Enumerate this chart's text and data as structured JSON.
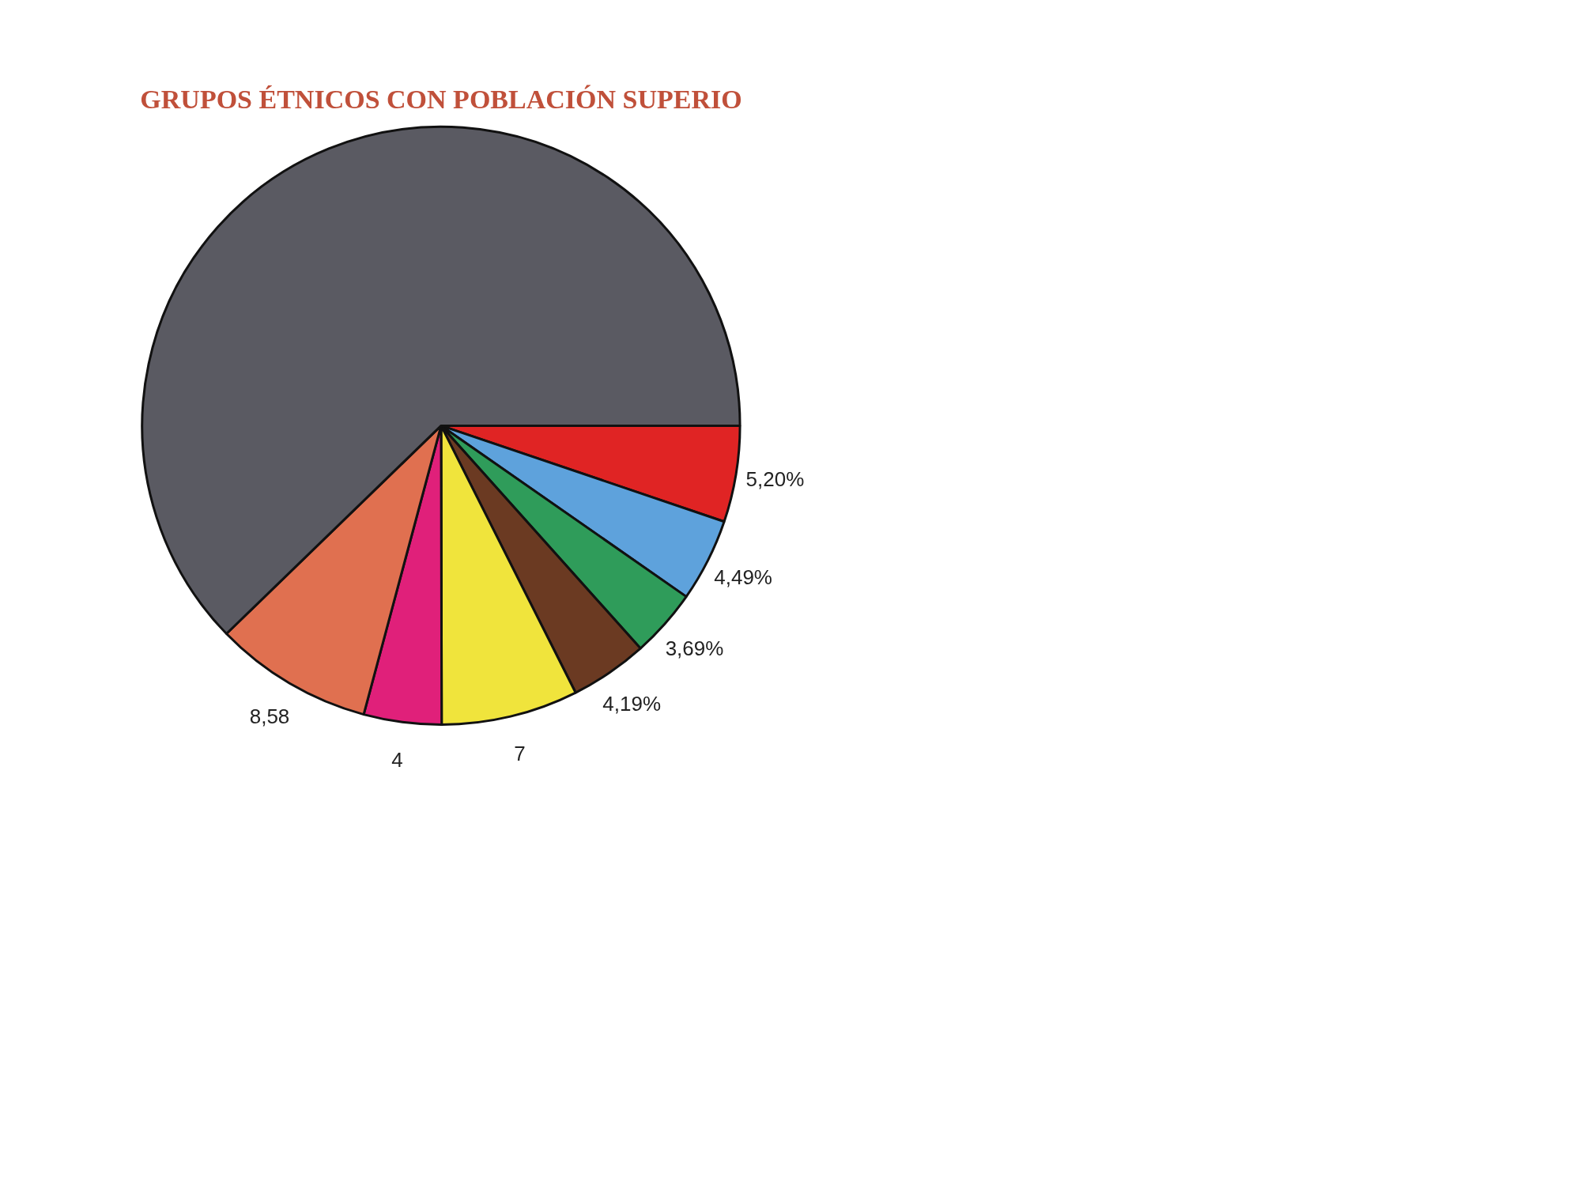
{
  "chart_data": {
    "type": "pie",
    "title": "GRUPOS ÉTNICOS CON POBLACIÓN SUPERIO",
    "categories": [
      null,
      null,
      null,
      null,
      null,
      null,
      null,
      null
    ],
    "values": [
      5.2,
      4.49,
      3.69,
      4.19,
      7.4,
      4.2,
      8.58,
      62.25
    ],
    "value_labels": [
      "5,20%",
      "4,49%",
      "3,69%",
      "4,19%",
      "7",
      "4",
      "8,58",
      null
    ],
    "colors": [
      "#e02424",
      "#5ea2dc",
      "#2f9c5a",
      "#6b3a22",
      "#f0e43c",
      "#e0207a",
      "#e07050",
      "#5a5a62"
    ],
    "legend": false
  }
}
